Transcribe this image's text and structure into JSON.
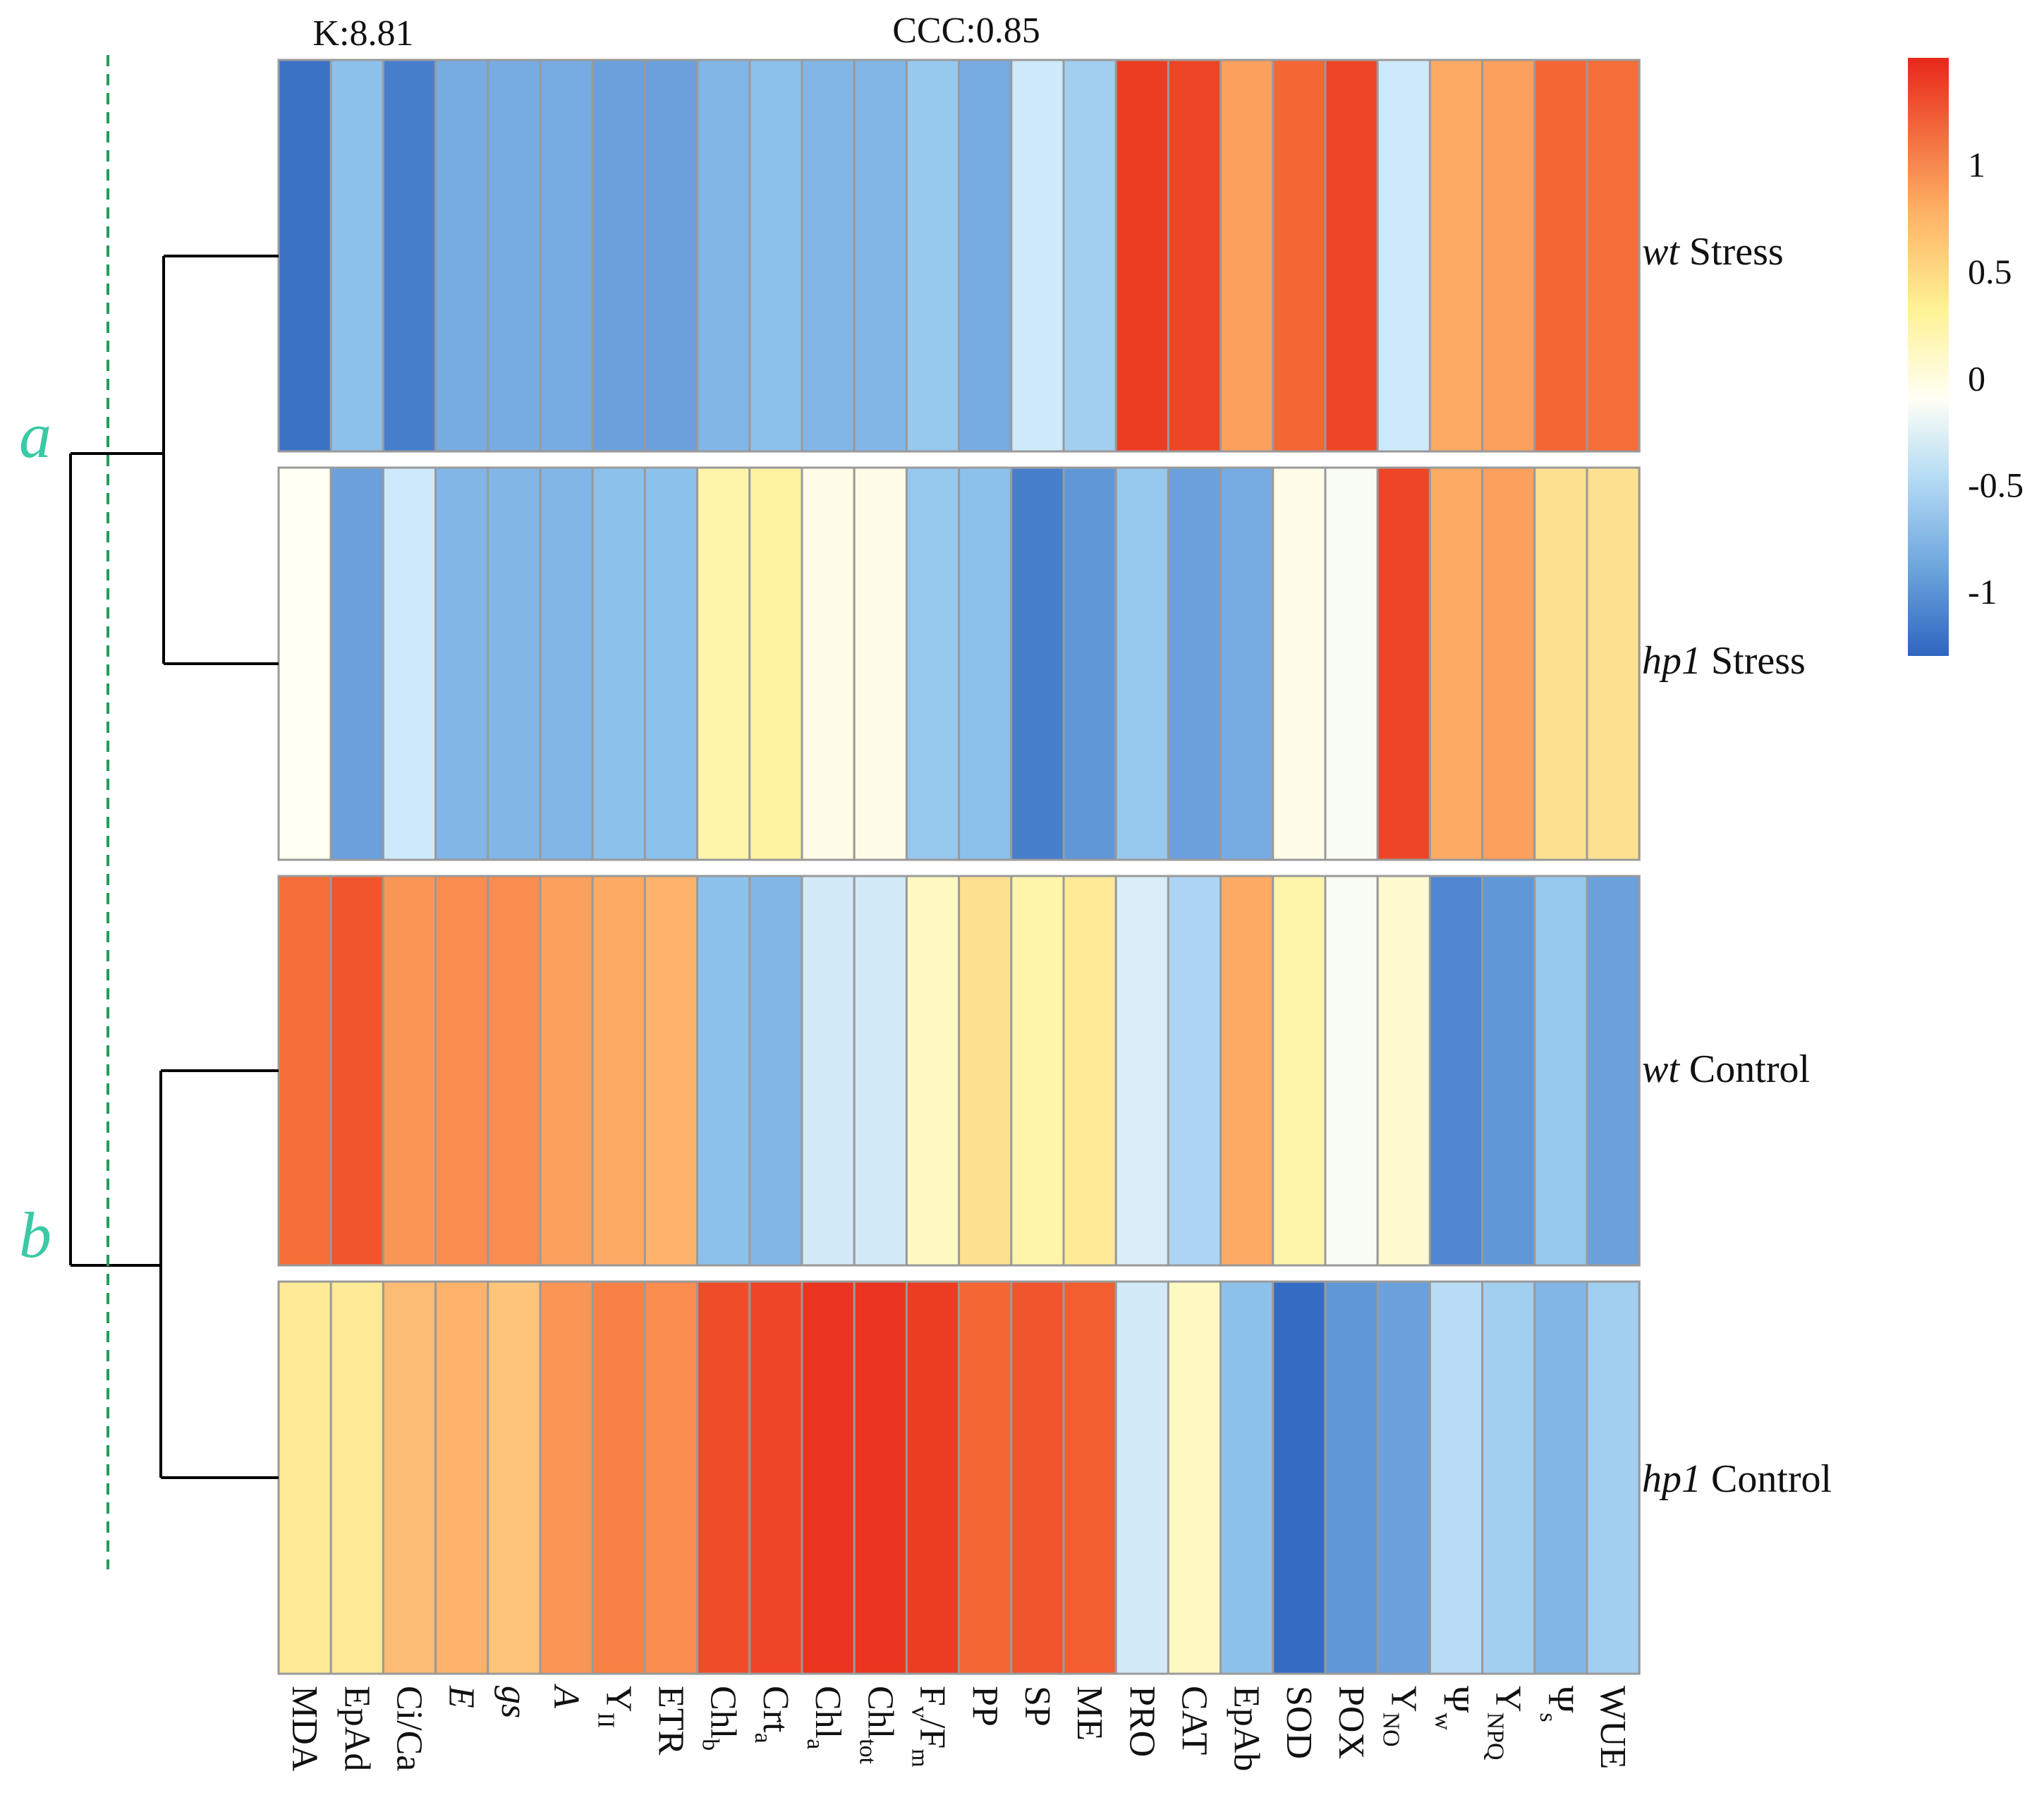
{
  "chart_data": {
    "type": "heatmap",
    "title": "",
    "header_left": "K:8.81",
    "header_center": "CCC:0.85",
    "variables": [
      {
        "name": "MDA",
        "main": "MDA",
        "sub": "",
        "italic": false
      },
      {
        "name": "EpAd",
        "main": "EpAd",
        "sub": "",
        "italic": false
      },
      {
        "name": "Ci/Ca",
        "main": "Ci/Ca",
        "sub": "",
        "italic": false
      },
      {
        "name": "E",
        "main": "E",
        "sub": "",
        "italic": true
      },
      {
        "name": "gs",
        "main": "gs",
        "sub": "",
        "italic": true
      },
      {
        "name": "A",
        "main": "A",
        "sub": "",
        "italic": true
      },
      {
        "name": "YII",
        "main": "Y",
        "sub": "II",
        "italic": false
      },
      {
        "name": "ETR",
        "main": "ETR",
        "sub": "",
        "italic": false
      },
      {
        "name": "Chlb",
        "main": "Chl",
        "sub": "b",
        "italic": false
      },
      {
        "name": "Crta",
        "main": "Crt",
        "sub": "a",
        "italic": false
      },
      {
        "name": "Chla",
        "main": "Chl",
        "sub": "a",
        "italic": false
      },
      {
        "name": "Chltot",
        "main": "Chl",
        "sub": "tot",
        "italic": false
      },
      {
        "name": "Fv/Fm",
        "main": "F",
        "sub": "v",
        "main2": "/F",
        "sub2": "m",
        "italic": false
      },
      {
        "name": "PP",
        "main": "PP",
        "sub": "",
        "italic": false
      },
      {
        "name": "SP",
        "main": "SP",
        "sub": "",
        "italic": false
      },
      {
        "name": "ME",
        "main": "ME",
        "sub": "",
        "italic": false
      },
      {
        "name": "PRO",
        "main": "PRO",
        "sub": "",
        "italic": false
      },
      {
        "name": "CAT",
        "main": "CAT",
        "sub": "",
        "italic": false
      },
      {
        "name": "EpAb",
        "main": "EpAb",
        "sub": "",
        "italic": false
      },
      {
        "name": "SOD",
        "main": "SOD",
        "sub": "",
        "italic": false
      },
      {
        "name": "POX",
        "main": "POX",
        "sub": "",
        "italic": false
      },
      {
        "name": "YNO",
        "main": "Y",
        "sub": "NO",
        "italic": false
      },
      {
        "name": "Ψw",
        "main": "Ψ",
        "sub": "w",
        "italic": false
      },
      {
        "name": "YNPQ",
        "main": "Y",
        "sub": "NPQ",
        "italic": false
      },
      {
        "name": "Ψs",
        "main": "Ψ",
        "sub": "s",
        "italic": false
      },
      {
        "name": "WUE",
        "main": "WUE",
        "sub": "",
        "italic": false
      }
    ],
    "rows": [
      {
        "genotype": "wt",
        "treatment": "Stress",
        "values": [
          -1.2,
          -0.75,
          -1.1,
          -0.85,
          -0.85,
          -0.85,
          -0.9,
          -0.9,
          -0.8,
          -0.75,
          -0.8,
          -0.8,
          -0.7,
          -0.85,
          -0.45,
          -0.65,
          1.35,
          1.3,
          0.8,
          1.1,
          1.3,
          -0.45,
          0.75,
          0.8,
          1.1,
          1.05
        ]
      },
      {
        "genotype": "hp1",
        "treatment": "Stress",
        "values": [
          0.0,
          -0.9,
          -0.45,
          -0.8,
          -0.8,
          -0.8,
          -0.75,
          -0.75,
          0.3,
          0.35,
          0.05,
          0.05,
          -0.7,
          -0.75,
          -1.1,
          -0.95,
          -0.7,
          -0.9,
          -0.85,
          0.05,
          -0.05,
          1.3,
          0.75,
          0.8,
          0.45,
          0.45
        ]
      },
      {
        "genotype": "wt",
        "treatment": "Control",
        "values": [
          1.05,
          1.2,
          0.85,
          0.9,
          0.9,
          0.8,
          0.75,
          0.7,
          -0.75,
          -0.8,
          -0.4,
          -0.4,
          0.2,
          0.45,
          0.3,
          0.4,
          -0.35,
          -0.6,
          0.75,
          0.3,
          -0.05,
          0.15,
          -1.05,
          -0.95,
          -0.7,
          -0.9
        ]
      },
      {
        "genotype": "hp1",
        "treatment": "Control",
        "values": [
          0.4,
          0.4,
          0.65,
          0.7,
          0.6,
          0.85,
          0.95,
          0.9,
          1.25,
          1.3,
          1.4,
          1.4,
          1.35,
          1.1,
          1.2,
          1.15,
          -0.4,
          0.2,
          -0.75,
          -1.25,
          -0.95,
          -0.9,
          -0.55,
          -0.65,
          -0.8,
          -0.65
        ]
      }
    ],
    "colorbar": {
      "ticks": [
        1,
        0.5,
        0,
        -0.5,
        -1
      ],
      "tick_labels": [
        "1",
        "0.5",
        "0",
        "-0.5",
        "-1"
      ],
      "range": [
        -1.3,
        1.5
      ]
    },
    "clusters": [
      {
        "label": "a",
        "members": [
          "wt Stress",
          "hp1 Stress"
        ]
      },
      {
        "label": "b",
        "members": [
          "wt Control",
          "hp1 Control"
        ]
      }
    ],
    "colors": {
      "low": "#3a6fc0",
      "mid_low": "#a6d3f2",
      "mid": "#fffff2",
      "mid_high": "#fde98a",
      "high": "#ee2a1b",
      "cluster_label": "#3cc9a5",
      "dashed_line": "#1f9e5a",
      "cell_border": "#9a9a9a"
    }
  }
}
